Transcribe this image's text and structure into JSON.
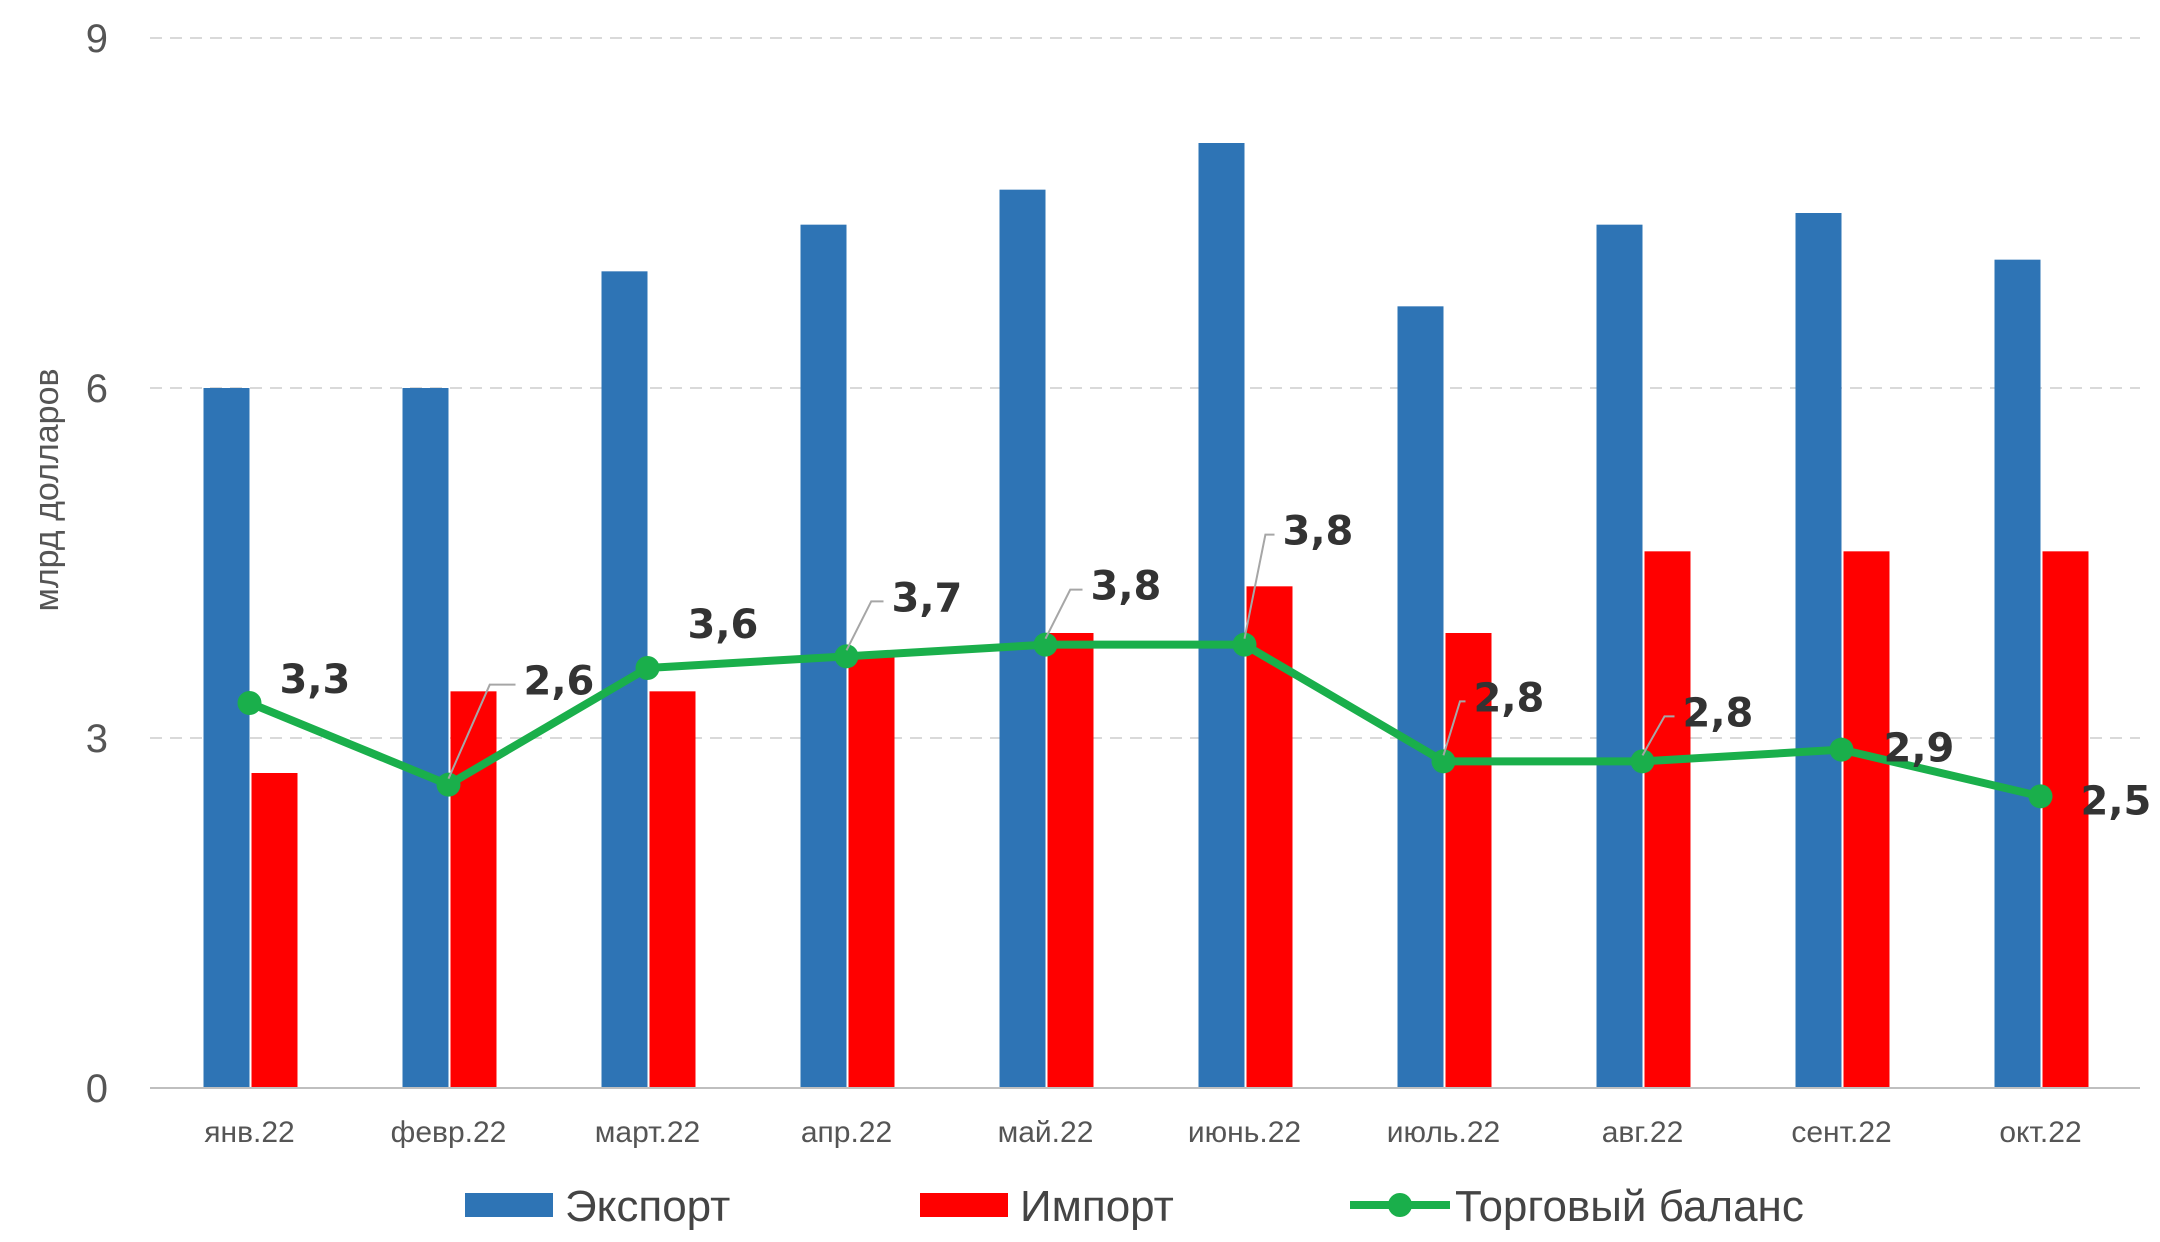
{
  "chart_data": {
    "type": "bar",
    "categories": [
      "янв.22",
      "февр.22",
      "март.22",
      "апр.22",
      "май.22",
      "июнь.22",
      "июль.22",
      "авг.22",
      "сент.22",
      "окт.22"
    ],
    "series": [
      {
        "name": "Экспорт",
        "type": "bar",
        "color": "#2E74B5",
        "values": [
          6.0,
          6.0,
          7.0,
          7.4,
          7.7,
          8.1,
          6.7,
          7.4,
          7.5,
          7.1
        ]
      },
      {
        "name": "Импорт",
        "type": "bar",
        "color": "#FF0000",
        "values": [
          2.7,
          3.4,
          3.4,
          3.7,
          3.9,
          4.3,
          3.9,
          4.6,
          4.6,
          4.6
        ]
      },
      {
        "name": "Торговый баланс",
        "type": "line",
        "color": "#1AAF4B",
        "values": [
          3.3,
          2.6,
          3.6,
          3.7,
          3.8,
          3.8,
          2.8,
          2.8,
          2.9,
          2.5
        ],
        "data_labels": [
          "3,3",
          "2,6",
          "3,6",
          "3,7",
          "3,8",
          "3,8",
          "2,8",
          "2,8",
          "2,9",
          "2,5"
        ]
      }
    ],
    "ylabel": "млрд долларов",
    "ylim": [
      0,
      9
    ],
    "yticks": [
      0,
      3,
      6,
      9
    ],
    "ytick_labels": [
      "0",
      "3",
      "6",
      "9"
    ],
    "grid": true,
    "legend_position": "bottom"
  }
}
